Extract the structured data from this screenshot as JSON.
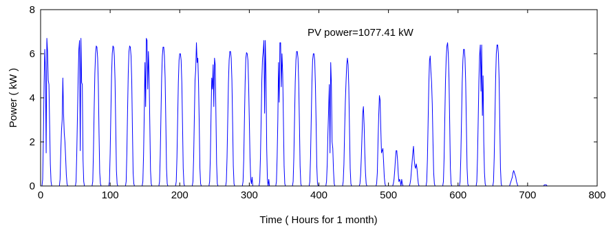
{
  "chart_data": {
    "type": "line",
    "xlabel": "Time ( Hours for 1 month)",
    "ylabel": "Power ( kW )",
    "annotation": "PV power=1077.41 kW",
    "xlim": [
      0,
      800
    ],
    "ylim": [
      0,
      8
    ],
    "xticks": [
      "0",
      "100",
      "200",
      "300",
      "400",
      "500",
      "600",
      "700",
      "800"
    ],
    "yticks": [
      "0",
      "2",
      "4",
      "6",
      "8"
    ],
    "grid": false,
    "series": [
      {
        "color": "#0000ff",
        "x": [
          0,
          2,
          3,
          4,
          5,
          6,
          7,
          8,
          9,
          10,
          11,
          12,
          13,
          14,
          15,
          16,
          17,
          18,
          19,
          20,
          24,
          26,
          27,
          28,
          29,
          30,
          31,
          32,
          33,
          34,
          35,
          36,
          37,
          38,
          39,
          40,
          41,
          42,
          43,
          44,
          48,
          50,
          51,
          52,
          53,
          54,
          55,
          56,
          57,
          58,
          59,
          60,
          61,
          62,
          63,
          64,
          65,
          66,
          67,
          68,
          72,
          74,
          75,
          76,
          77,
          78,
          79,
          80,
          81,
          82,
          83,
          84,
          85,
          86,
          87,
          88,
          89,
          90,
          91,
          92,
          96,
          98,
          99,
          100,
          101,
          102,
          103,
          104,
          105,
          106,
          107,
          108,
          109,
          110,
          111,
          112,
          113,
          114,
          115,
          116,
          120,
          122,
          123,
          124,
          125,
          126,
          127,
          128,
          129,
          130,
          131,
          132,
          133,
          134,
          135,
          136,
          137,
          138,
          139,
          140,
          144,
          146,
          147,
          148,
          149,
          150,
          151,
          152,
          153,
          154,
          155,
          156,
          157,
          158,
          159,
          160,
          161,
          162,
          163,
          164,
          168,
          170,
          171,
          172,
          173,
          174,
          175,
          176,
          177,
          178,
          179,
          180,
          181,
          182,
          183,
          184,
          185,
          186,
          187,
          188,
          192,
          194,
          195,
          196,
          197,
          198,
          199,
          200,
          201,
          202,
          203,
          204,
          205,
          206,
          207,
          208,
          209,
          210,
          211,
          212,
          216,
          218,
          219,
          220,
          221,
          222,
          223,
          224,
          225,
          226,
          227,
          228,
          229,
          230,
          231,
          232,
          233,
          234,
          235,
          236,
          240,
          242,
          243,
          244,
          245,
          246,
          247,
          248,
          249,
          250,
          251,
          252,
          253,
          254,
          255,
          256,
          257,
          258,
          259,
          260,
          264,
          266,
          267,
          268,
          269,
          270,
          271,
          272,
          273,
          274,
          275,
          276,
          277,
          278,
          279,
          280,
          281,
          282,
          283,
          284,
          288,
          290,
          291,
          292,
          293,
          294,
          295,
          296,
          297,
          298,
          299,
          300,
          301,
          302,
          303,
          304,
          305,
          306,
          307,
          308,
          312,
          314,
          315,
          316,
          317,
          318,
          319,
          320,
          321,
          322,
          323,
          324,
          325,
          326,
          327,
          328,
          329,
          330,
          331,
          332,
          336,
          338,
          339,
          340,
          341,
          342,
          343,
          344,
          345,
          346,
          347,
          348,
          349,
          350,
          351,
          352,
          353,
          354,
          355,
          356,
          360,
          362,
          363,
          364,
          365,
          366,
          367,
          368,
          369,
          370,
          371,
          372,
          373,
          374,
          375,
          376,
          377,
          378,
          379,
          380,
          384,
          386,
          387,
          388,
          389,
          390,
          391,
          392,
          393,
          394,
          395,
          396,
          397,
          398,
          399,
          400,
          401,
          402,
          403,
          404,
          408,
          410,
          411,
          412,
          413,
          414,
          415,
          416,
          417,
          418,
          419,
          420,
          421,
          422,
          423,
          424,
          425,
          426,
          427,
          428,
          432,
          434,
          435,
          436,
          437,
          438,
          439,
          440,
          441,
          442,
          443,
          444,
          445,
          446,
          447,
          448,
          449,
          450,
          451,
          452,
          456,
          458,
          459,
          460,
          461,
          462,
          463,
          464,
          465,
          466,
          467,
          468,
          469,
          470,
          471,
          472,
          473,
          474,
          475,
          476,
          480,
          482,
          483,
          484,
          485,
          486,
          487,
          488,
          489,
          490,
          491,
          492,
          493,
          494,
          495,
          496,
          497,
          498,
          499,
          500,
          504,
          506,
          507,
          508,
          509,
          510,
          511,
          512,
          513,
          514,
          515,
          516,
          517,
          518,
          519,
          520,
          521,
          522,
          523,
          524,
          528,
          530,
          531,
          532,
          533,
          534,
          535,
          536,
          537,
          538,
          539,
          540,
          541,
          542,
          543,
          544,
          545,
          546,
          547,
          548,
          552,
          554,
          555,
          556,
          557,
          558,
          559,
          560,
          561,
          562,
          563,
          564,
          565,
          566,
          567,
          568,
          569,
          570,
          571,
          572,
          576,
          578,
          579,
          580,
          581,
          582,
          583,
          584,
          585,
          586,
          587,
          588,
          589,
          590,
          591,
          592,
          593,
          594,
          595,
          596,
          600,
          602,
          603,
          604,
          605,
          606,
          607,
          608,
          609,
          610,
          611,
          612,
          613,
          614,
          615,
          616,
          617,
          618,
          619,
          620,
          624,
          626,
          627,
          628,
          629,
          630,
          631,
          632,
          633,
          634,
          635,
          636,
          637,
          638,
          639,
          640,
          641,
          642,
          643,
          644,
          648,
          650,
          651,
          652,
          653,
          654,
          655,
          656,
          657,
          658,
          659,
          660,
          661,
          662,
          663,
          664,
          665,
          666,
          667,
          668,
          672,
          674,
          675,
          676,
          677,
          678,
          679,
          680,
          681,
          682,
          683,
          684,
          685,
          686,
          687,
          688,
          689,
          690,
          691,
          692,
          696,
          698,
          699,
          700,
          701,
          702,
          703,
          704,
          705,
          706,
          707,
          708,
          709,
          710,
          711,
          712,
          713,
          714,
          715,
          716,
          720,
          722,
          723,
          724,
          725,
          726,
          727,
          728,
          729,
          730,
          731,
          732,
          733,
          734,
          735,
          736,
          737,
          738,
          739,
          740,
          744
        ],
        "y": [
          0,
          0,
          0.3,
          2.2,
          4.6,
          6.2,
          5.2,
          1.5,
          6.7,
          6.1,
          4.8,
          4.6,
          2.8,
          1.0,
          0.2,
          0,
          0,
          0,
          0,
          0,
          0,
          0,
          0,
          0.3,
          1.5,
          2.5,
          3.0,
          4.9,
          3.3,
          2.4,
          2.0,
          1.3,
          0.5,
          0.1,
          0,
          0,
          0,
          0,
          0,
          0,
          0,
          0,
          0.2,
          1.5,
          3.2,
          4.9,
          6.2,
          6.6,
          1.6,
          6.7,
          4.7,
          4.6,
          1.2,
          0.2,
          0,
          0,
          0,
          0,
          0,
          0,
          0,
          0,
          0.2,
          1.6,
          3.5,
          5.1,
          6.0,
          6.35,
          6.3,
          5.8,
          4.6,
          2.4,
          0.6,
          0.1,
          0,
          0,
          0,
          0,
          0,
          0,
          0,
          0,
          0.2,
          1.5,
          3.3,
          5.0,
          6.0,
          6.35,
          6.3,
          5.9,
          4.8,
          2.7,
          0.7,
          0.1,
          0,
          0,
          0,
          0,
          0,
          0,
          0,
          0,
          0.2,
          1.5,
          3.4,
          5.1,
          6.1,
          6.35,
          6.3,
          5.9,
          4.8,
          2.6,
          0.6,
          0.1,
          0,
          0,
          0,
          0,
          0,
          0,
          0,
          0,
          0.2,
          1.4,
          3.3,
          5.6,
          3.6,
          6.7,
          6.6,
          4.4,
          6.1,
          4.9,
          2.8,
          0.7,
          0.1,
          0,
          0,
          0,
          0,
          0,
          0,
          0,
          0.2,
          1.4,
          3.2,
          4.9,
          5.9,
          6.3,
          6.3,
          5.9,
          4.9,
          2.9,
          0.8,
          0.1,
          0,
          0,
          0,
          0,
          0,
          0,
          0,
          0,
          0.2,
          1.3,
          3.0,
          4.7,
          5.7,
          6.0,
          6.0,
          5.7,
          4.7,
          2.8,
          0.8,
          0.1,
          0,
          0,
          0,
          0,
          0,
          0,
          0,
          0,
          0.2,
          1.3,
          3.1,
          4.8,
          5.3,
          6.5,
          5.6,
          5.8,
          4.7,
          2.9,
          0.8,
          0.1,
          0,
          0,
          0,
          0,
          0,
          0,
          0,
          0,
          0.2,
          1.3,
          3.2,
          4.9,
          4.4,
          5.5,
          3.6,
          5.8,
          5.5,
          3.3,
          1.0,
          0.1,
          0,
          0,
          0,
          0,
          0,
          0,
          0,
          0,
          0.2,
          1.3,
          3.0,
          4.7,
          5.7,
          6.1,
          6.1,
          5.8,
          4.8,
          2.9,
          0.9,
          0.1,
          0,
          0,
          0,
          0,
          0,
          0,
          0,
          0,
          0.2,
          1.2,
          3.0,
          4.7,
          5.8,
          6.05,
          6.0,
          5.7,
          4.6,
          3.0,
          1.3,
          0.3,
          0.1,
          0.4,
          0,
          0,
          0,
          0,
          0,
          0,
          0.2,
          1.3,
          3.0,
          4.8,
          5.8,
          6.1,
          6.6,
          3.3,
          6.6,
          5.0,
          1.7,
          0.3,
          0,
          0.3,
          0,
          0,
          0,
          0,
          0,
          0,
          0.2,
          1.3,
          3.0,
          5.6,
          3.8,
          6.5,
          6.5,
          4.5,
          6.0,
          5.1,
          3.0,
          0.9,
          0.1,
          0,
          0,
          0,
          0,
          0,
          0,
          0,
          0.2,
          1.3,
          3.0,
          4.7,
          5.7,
          6.1,
          6.1,
          5.8,
          4.7,
          2.9,
          0.9,
          0.1,
          0,
          0,
          0,
          0,
          0,
          0,
          0,
          0,
          0.2,
          1.3,
          3.0,
          4.7,
          5.7,
          6.0,
          6.0,
          5.7,
          4.6,
          2.9,
          0.9,
          0.1,
          0,
          0,
          0,
          0,
          0,
          0,
          0,
          0,
          0.2,
          1.0,
          2.4,
          3.5,
          4.6,
          1.5,
          5.6,
          4.6,
          2.0,
          1.7,
          0.7,
          0.1,
          0,
          0,
          0,
          0,
          0,
          0,
          0,
          0,
          0.2,
          1.0,
          2.5,
          3.8,
          4.7,
          5.5,
          5.8,
          5.5,
          4.5,
          2.6,
          0.8,
          0.1,
          0,
          0,
          0,
          0,
          0,
          0,
          0,
          0,
          0.1,
          0.5,
          1.3,
          2.3,
          3.3,
          3.6,
          2.8,
          1.5,
          0.6,
          0.1,
          0,
          0,
          0,
          0,
          0,
          0,
          0,
          0,
          0,
          0,
          0.1,
          0.6,
          2.0,
          3.2,
          4.1,
          3.9,
          2.6,
          1.5,
          1.6,
          1.7,
          1.1,
          0.4,
          0.1,
          0,
          0,
          0,
          0,
          0,
          0,
          0,
          0.1,
          0.3,
          0.7,
          1.2,
          1.6,
          1.6,
          1.2,
          0.6,
          0.2,
          0.3,
          0.2,
          0,
          0.3,
          0.1,
          0,
          0,
          0,
          0,
          0,
          0,
          0.1,
          0.3,
          0.7,
          1.1,
          1.5,
          1.8,
          1.2,
          0.9,
          0.8,
          1.0,
          0.8,
          0.4,
          0.1,
          0,
          0,
          0,
          0,
          0,
          0,
          0,
          0.2,
          1.2,
          2.9,
          4.6,
          5.7,
          5.9,
          5.2,
          4.7,
          3.7,
          2.0,
          0.6,
          0.1,
          0,
          0,
          0,
          0,
          0,
          0,
          0,
          0,
          0.2,
          1.3,
          3.1,
          4.8,
          5.8,
          6.35,
          6.5,
          6.0,
          4.9,
          2.9,
          0.8,
          0.1,
          0,
          0,
          0,
          0,
          0,
          0,
          0,
          0,
          0.2,
          1.3,
          3.0,
          4.7,
          5.7,
          6.2,
          6.2,
          5.8,
          4.7,
          2.8,
          0.8,
          0.1,
          0,
          0,
          0,
          0,
          0,
          0,
          0,
          0,
          0.2,
          1.3,
          3.0,
          4.8,
          5.9,
          6.4,
          4.3,
          6.4,
          3.2,
          5.0,
          2.0,
          0.6,
          0.1,
          0,
          0,
          0,
          0,
          0,
          0,
          0,
          0.2,
          1.3,
          3.0,
          4.8,
          6.0,
          6.4,
          6.4,
          6.0,
          4.9,
          2.9,
          0.8,
          0.1,
          0,
          0,
          0,
          0,
          0,
          0,
          0,
          0,
          0.1,
          0.2,
          0.3,
          0.4,
          0.6,
          0.7,
          0.6,
          0.5,
          0.4,
          0.2,
          0.1,
          0,
          0,
          0,
          0,
          0,
          0,
          0,
          0,
          0,
          0,
          0,
          0,
          0,
          0,
          0,
          0,
          0,
          0,
          0,
          0,
          0,
          0,
          0,
          0,
          0,
          0,
          0,
          0,
          0,
          0,
          0.05,
          0.05,
          0.05,
          0.05,
          0,
          0,
          0,
          0,
          0,
          0,
          0,
          0,
          0,
          0,
          0,
          0,
          0,
          0
        ]
      }
    ]
  }
}
